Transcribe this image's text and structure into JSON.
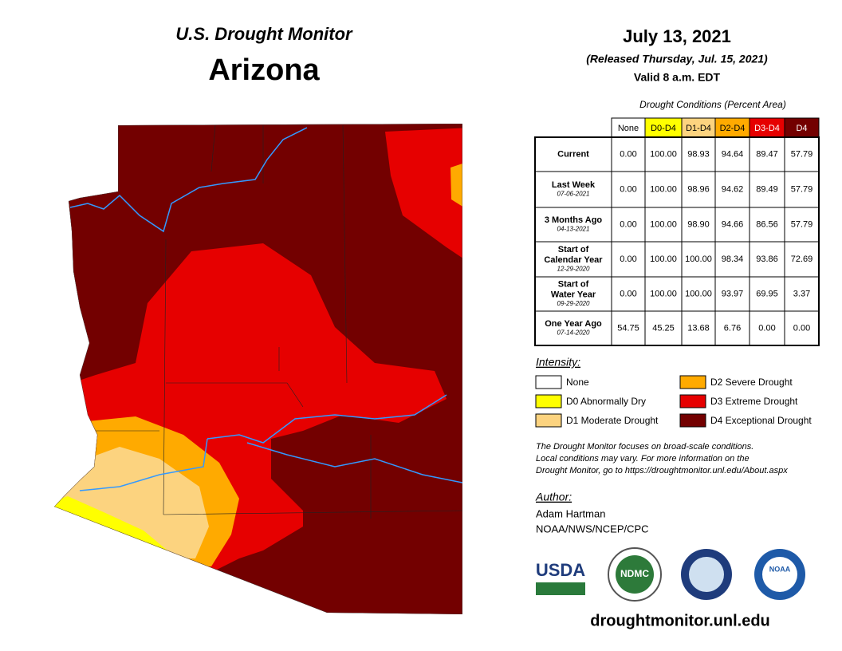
{
  "header": {
    "title": "U.S. Drought Monitor",
    "state": "Arizona"
  },
  "date": {
    "date": "July 13, 2021",
    "released": "(Released Thursday, Jul. 15, 2021)",
    "valid": "Valid 8 a.m. EDT"
  },
  "table": {
    "caption": "Drought Conditions (Percent Area)",
    "columns": [
      {
        "label": "None",
        "color": "#ffffff",
        "text": "#000000"
      },
      {
        "label": "D0-D4",
        "color": "#ffff00",
        "text": "#000000"
      },
      {
        "label": "D1-D4",
        "color": "#fcd37f",
        "text": "#000000"
      },
      {
        "label": "D2-D4",
        "color": "#ffaa00",
        "text": "#000000"
      },
      {
        "label": "D3-D4",
        "color": "#e60000",
        "text": "#ffffff"
      },
      {
        "label": "D4",
        "color": "#730000",
        "text": "#ffffff"
      }
    ],
    "rows": [
      {
        "label": [
          "Current"
        ],
        "values": [
          "0.00",
          "100.00",
          "98.93",
          "94.64",
          "89.47",
          "57.79"
        ]
      },
      {
        "label": [
          "Last Week"
        ],
        "date": "07-06-2021",
        "values": [
          "0.00",
          "100.00",
          "98.96",
          "94.62",
          "89.49",
          "57.79"
        ]
      },
      {
        "label": [
          "3 Months Ago"
        ],
        "date": "04-13-2021",
        "values": [
          "0.00",
          "100.00",
          "98.90",
          "94.66",
          "86.56",
          "57.79"
        ]
      },
      {
        "label": [
          "Start of",
          "Calendar Year"
        ],
        "date": "12-29-2020",
        "values": [
          "0.00",
          "100.00",
          "100.00",
          "98.34",
          "93.86",
          "72.69"
        ]
      },
      {
        "label": [
          "Start of",
          "Water Year"
        ],
        "date": "09-29-2020",
        "values": [
          "0.00",
          "100.00",
          "100.00",
          "93.97",
          "69.95",
          "3.37"
        ]
      },
      {
        "label": [
          "One Year Ago"
        ],
        "date": "07-14-2020",
        "values": [
          "54.75",
          "45.25",
          "13.68",
          "6.76",
          "0.00",
          "0.00"
        ]
      }
    ]
  },
  "legend": {
    "title": "Intensity:",
    "items": [
      {
        "label": "None",
        "color": "#ffffff"
      },
      {
        "label": "D0 Abnormally Dry",
        "color": "#ffff00"
      },
      {
        "label": "D1 Moderate Drought",
        "color": "#fcd37f"
      },
      {
        "label": "D2 Severe Drought",
        "color": "#ffaa00"
      },
      {
        "label": "D3 Extreme Drought",
        "color": "#e60000"
      },
      {
        "label": "D4 Exceptional Drought",
        "color": "#730000"
      }
    ]
  },
  "note": [
    "The Drought Monitor focuses on broad-scale conditions.",
    "Local conditions may vary. For more information on the",
    "Drought Monitor, go to https://droughtmonitor.unl.edu/About.aspx"
  ],
  "author": {
    "title": "Author:",
    "name": "Adam Hartman",
    "org": "NOAA/NWS/NCEP/CPC"
  },
  "logos": [
    "USDA",
    "NDMC",
    "NOAA"
  ],
  "url": "droughtmonitor.unl.edu"
}
